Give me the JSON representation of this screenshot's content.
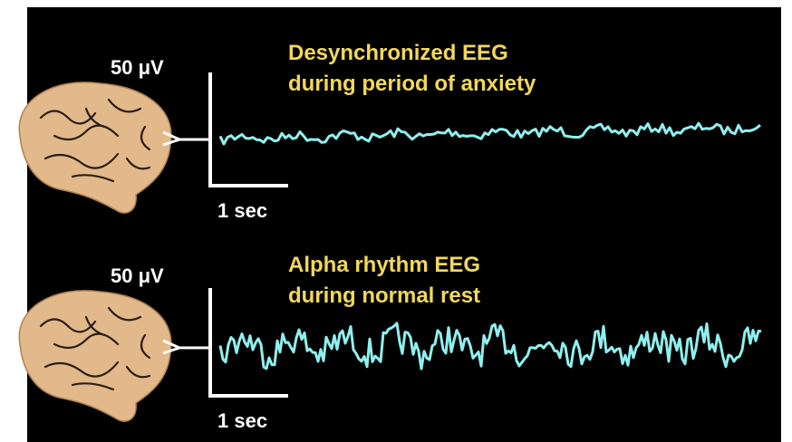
{
  "panels": [
    {
      "scale_label": "50 μV",
      "title": [
        "Desynchronized EEG",
        "during period of anxiety"
      ],
      "time_label": "1 sec"
    },
    {
      "scale_label": "50 μV",
      "title": [
        "Alpha rhythm EEG",
        "during normal rest"
      ],
      "time_label": "1 sec"
    }
  ]
}
